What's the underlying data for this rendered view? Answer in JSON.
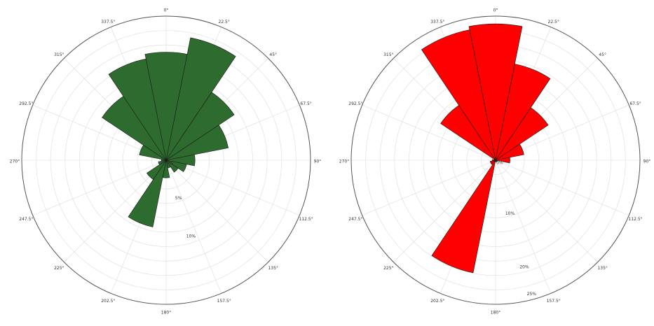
{
  "chart_data": [
    {
      "type": "polar-bar",
      "title": "",
      "sector_width_deg": 22.5,
      "max_value": 18,
      "angle_labels": [
        "0°",
        "22.5°",
        "45°",
        "67.5°",
        "90°",
        "112.5°",
        "135°",
        "157.5°",
        "180°",
        "202.5°",
        "225°",
        "247.5°",
        "270°",
        "292.5°",
        "315°",
        "337.5°"
      ],
      "radial_ticks": [
        {
          "value": 0,
          "label": "0%"
        },
        {
          "value": 5,
          "label": "5%"
        },
        {
          "value": 10,
          "label": "10%"
        }
      ],
      "color": "#2e6b2e",
      "series": [
        {
          "direction": "N",
          "values": [
            13.5,
            15.6,
            10.2,
            7.9,
            3.6,
            2.6,
            1.8,
            1.0,
            2.2,
            8.5,
            2.9,
            1.0,
            0.6,
            3.4,
            9.6,
            12.9
          ]
        }
      ]
    },
    {
      "type": "polar-bar",
      "title": "",
      "sector_width_deg": 22.5,
      "max_value": 26,
      "angle_labels": [
        "0°",
        "22.5°",
        "45°",
        "67.5°",
        "90°",
        "112.5°",
        "135°",
        "157.5°",
        "180°",
        "202.5°",
        "225°",
        "247.5°",
        "270°",
        "292.5°",
        "315°",
        "337.5°"
      ],
      "radial_ticks": [
        {
          "value": 0,
          "label": "0%"
        },
        {
          "value": 10,
          "label": "10%"
        },
        {
          "value": 20,
          "label": "20%"
        },
        {
          "value": 25,
          "label": "25%"
        }
      ],
      "color": "#ff0000",
      "series": [
        {
          "direction": "N",
          "values": [
            24.6,
            17.7,
            11.4,
            5.2,
            2.6,
            0.3,
            0.3,
            0.3,
            0.3,
            20.7,
            1.0,
            1.0,
            0.6,
            0.3,
            11.9,
            24.0
          ]
        }
      ]
    }
  ]
}
